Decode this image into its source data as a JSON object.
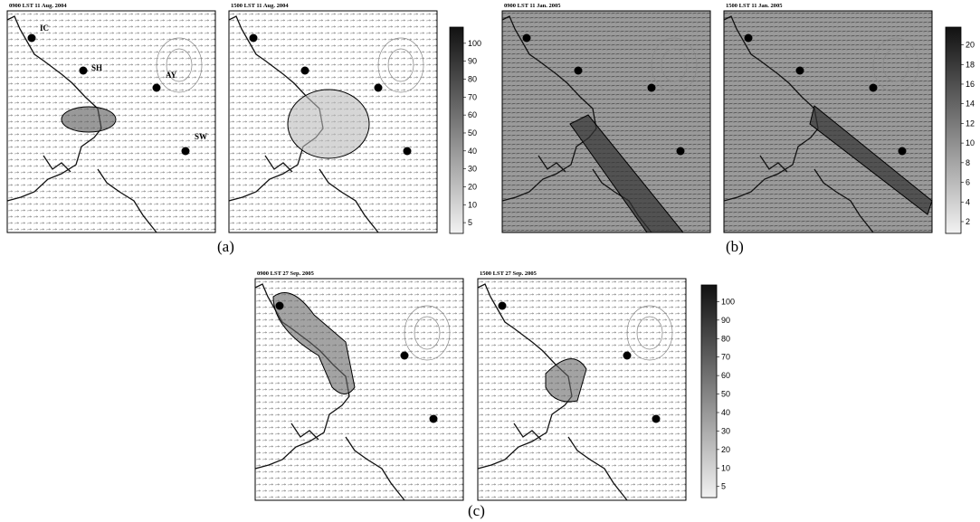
{
  "panels": [
    {
      "label": "(a)",
      "maps": [
        {
          "title": "0900 LST 11 Aug. 2004"
        },
        {
          "title": "1500 LST 11 Aug. 2004"
        }
      ],
      "colorbar": [
        100,
        90,
        80,
        70,
        60,
        50,
        40,
        30,
        20,
        10,
        5
      ]
    },
    {
      "label": "(b)",
      "maps": [
        {
          "title": "0900 LST 11 Jan. 2005"
        },
        {
          "title": "1500 LST 11 Jan. 2005"
        }
      ],
      "colorbar": [
        20,
        18,
        16,
        14,
        12,
        10,
        8,
        6,
        4,
        2
      ]
    },
    {
      "label": "(c)",
      "maps": [
        {
          "title": "0900 LST 27 Sep. 2005"
        },
        {
          "title": "1500 LST 27 Sep. 2005"
        }
      ],
      "colorbar": [
        100,
        90,
        80,
        70,
        60,
        50,
        40,
        30,
        20,
        10,
        5
      ]
    }
  ],
  "stations": [
    "IC",
    "SH",
    "AY",
    "SW"
  ]
}
